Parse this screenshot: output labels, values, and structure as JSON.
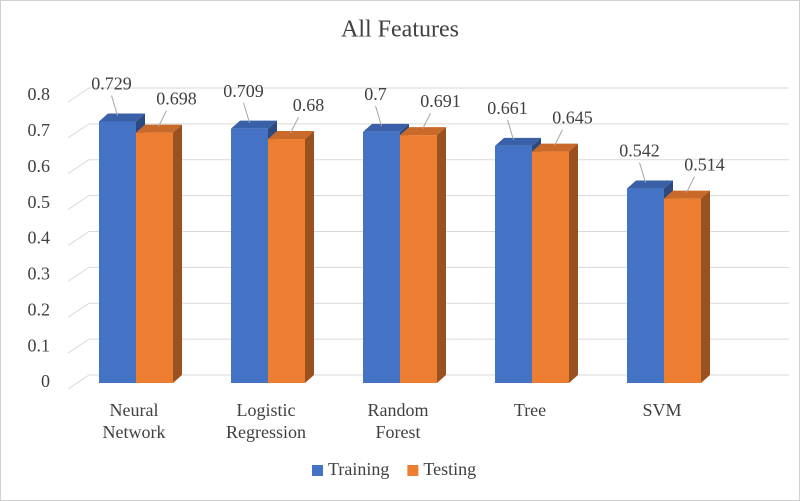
{
  "chart_data": {
    "type": "bar3d",
    "title": "All Features",
    "categories": [
      "Neural Network",
      "Logistic Regression",
      "Random Forest",
      "Tree",
      "SVM"
    ],
    "series": [
      {
        "name": "Training",
        "color": "#4472c4",
        "values": [
          0.729,
          0.709,
          0.7,
          0.661,
          0.542
        ]
      },
      {
        "name": "Testing",
        "color": "#ed7d31",
        "values": [
          0.698,
          0.68,
          0.691,
          0.645,
          0.514
        ]
      }
    ],
    "ylim": [
      0,
      0.8
    ],
    "yticks": [
      0,
      0.1,
      0.2,
      0.3,
      0.4,
      0.5,
      0.6,
      0.7,
      0.8
    ],
    "grid": true,
    "legend": "bottom"
  }
}
